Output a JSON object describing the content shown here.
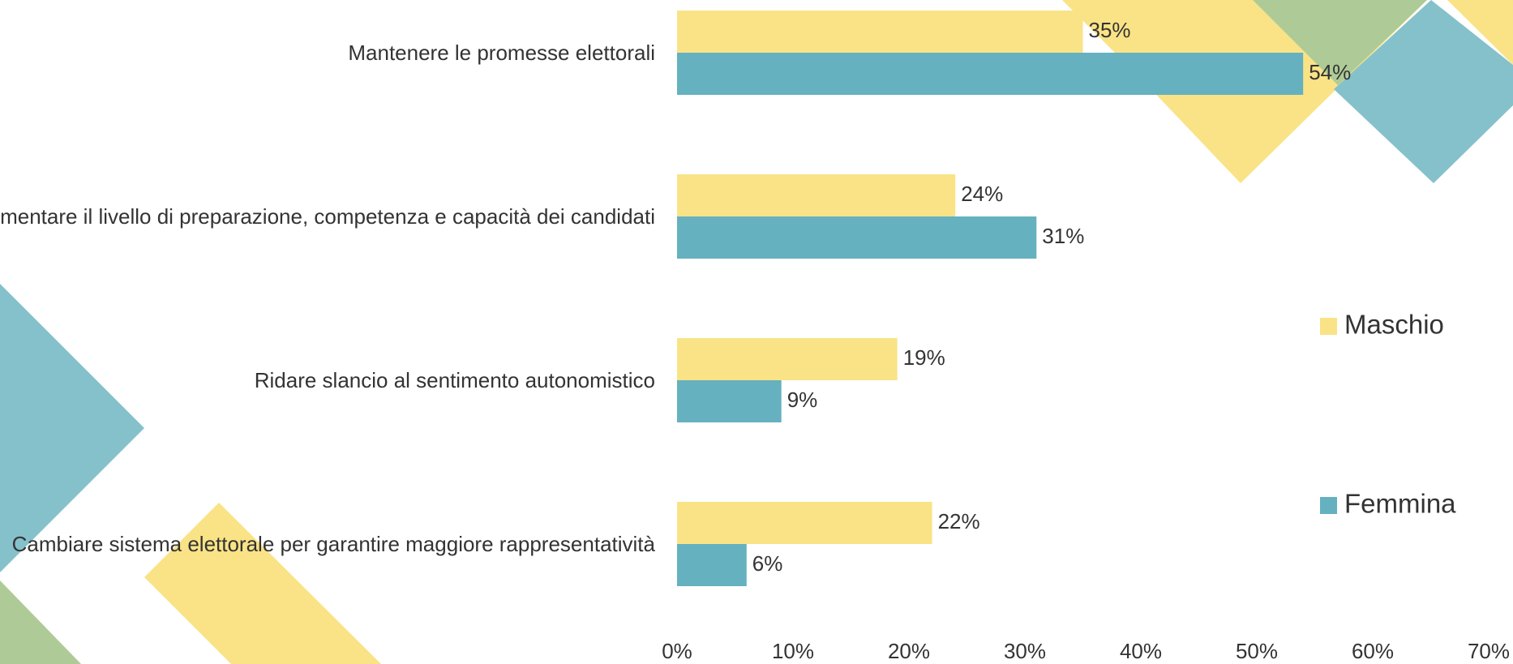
{
  "chart_data": {
    "type": "hbar",
    "categories": [
      "Mantenere le promesse elettorali",
      "Aumentare il livello di preparazione, competenza e capacità dei candidati",
      "Ridare slancio al sentimento autonomistico",
      "Cambiare sistema elettorale per garantire maggiore rappresentatività"
    ],
    "series": [
      {
        "name": "Maschio",
        "color": "#fae386",
        "values": [
          35,
          24,
          19,
          22
        ],
        "value_labels": [
          "35%",
          "24%",
          "19%",
          "22%"
        ]
      },
      {
        "name": "Femmina",
        "color": "#65b1bf",
        "values": [
          54,
          31,
          9,
          6
        ],
        "value_labels": [
          "54%",
          "31%",
          "9%",
          "6%"
        ]
      }
    ],
    "xlim": [
      0,
      70
    ],
    "xticks": [
      {
        "value": 0,
        "label": "0%"
      },
      {
        "value": 10,
        "label": "10%"
      },
      {
        "value": 20,
        "label": "20%"
      },
      {
        "value": 30,
        "label": "30%"
      },
      {
        "value": 40,
        "label": "40%"
      },
      {
        "value": 50,
        "label": "50%"
      },
      {
        "value": 60,
        "label": "60%"
      },
      {
        "value": 70,
        "label": "70%"
      }
    ],
    "legend": "right"
  }
}
